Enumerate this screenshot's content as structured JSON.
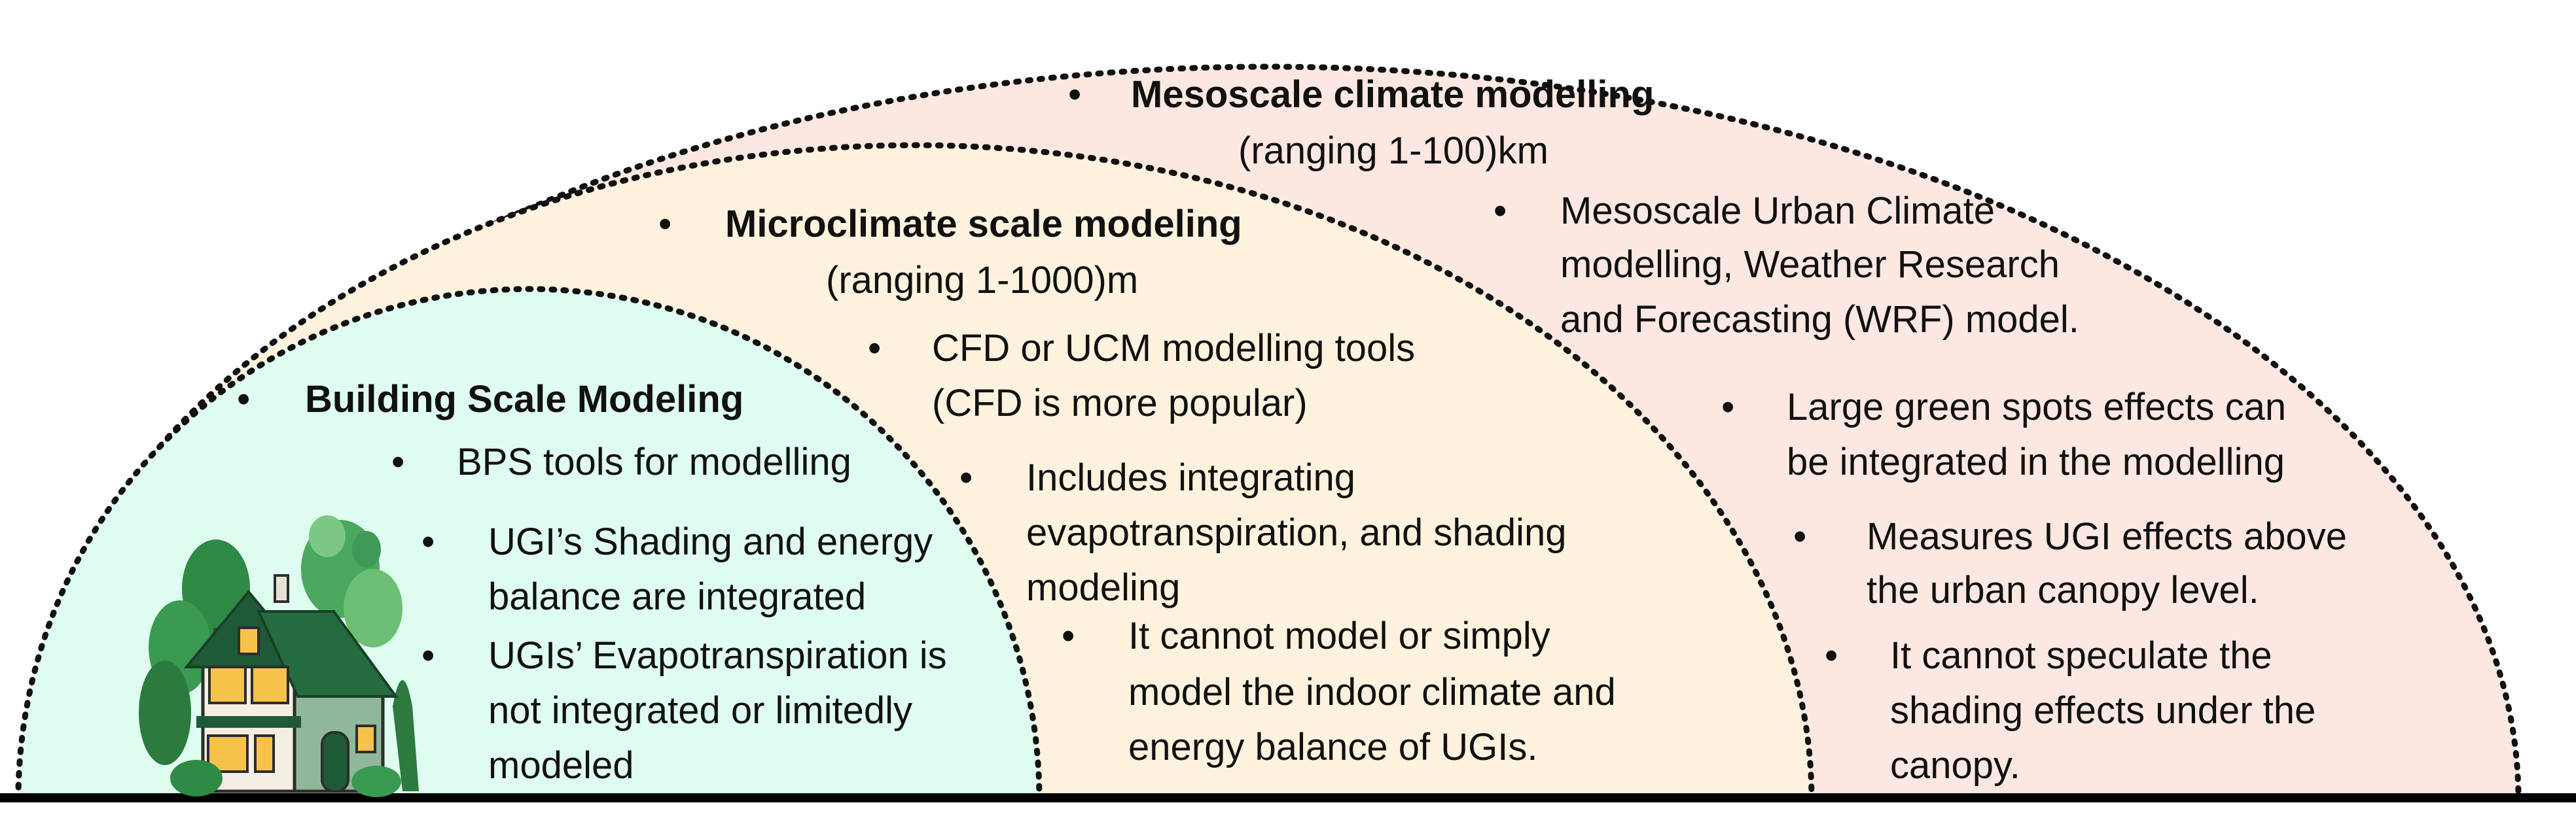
{
  "colors": {
    "outer_fill": "#fde8e1",
    "middle_fill": "#fdf2dd",
    "inner_fill": "#dffcf0",
    "dotted_stroke": "#111111",
    "ground": "#000000"
  },
  "mesoscale": {
    "title": "Mesoscale climate modelling",
    "range": "(ranging 1-100)km",
    "item1_lines": [
      "Mesoscale Urban Climate",
      "modelling, Weather Research",
      "and Forecasting (WRF) model."
    ],
    "item2_lines": [
      "Large green spots effects can",
      "be integrated in the modelling"
    ],
    "item3_lines": [
      "Measures UGI effects above",
      "the urban canopy level."
    ],
    "item4_lines": [
      "It cannot speculate the",
      "shading effects under the",
      "canopy."
    ]
  },
  "microclimate": {
    "title": "Microclimate scale modeling",
    "range": "(ranging 1-1000)m",
    "item1_lines": [
      "CFD or UCM modelling tools",
      "(CFD is more popular)"
    ],
    "item2_lines": [
      "Includes integrating",
      "evapotranspiration, and shading",
      "modeling"
    ],
    "item3_lines": [
      "It cannot model or simply",
      "model the indoor climate and",
      "energy balance of UGIs."
    ]
  },
  "building": {
    "title": "Building Scale Modeling",
    "item1_lines": [
      "BPS tools for modelling"
    ],
    "item2_lines": [
      "UGI’s Shading and energy",
      "balance are  integrated"
    ],
    "item3_lines": [
      "UGIs’ Evapotranspiration is",
      "not integrated or limitedly",
      "modeled"
    ]
  },
  "bullet_char": "•",
  "house_icon": "house-with-trees-icon"
}
